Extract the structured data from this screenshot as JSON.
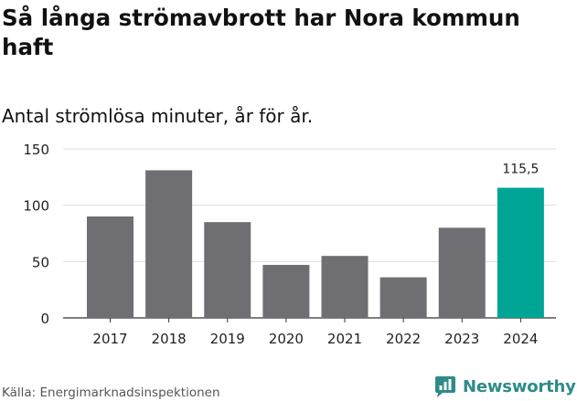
{
  "title": "Så långa strömavbrott har Nora kommun haft",
  "subtitle": "Antal strömlösa minuter, år för år.",
  "source": "Källa: Energimarknadsinspektionen",
  "brand": {
    "name": "Newsworthy",
    "icon": "newsworthy-logo-icon",
    "color": "#2e8b88"
  },
  "chart_data": {
    "type": "bar",
    "title": "Så långa strömavbrott har Nora kommun haft",
    "subtitle": "Antal strömlösa minuter, år för år.",
    "xlabel": "",
    "ylabel": "",
    "categories": [
      "2017",
      "2018",
      "2019",
      "2020",
      "2021",
      "2022",
      "2023",
      "2024"
    ],
    "values": [
      90,
      131,
      85,
      47,
      55,
      36,
      80,
      115.5
    ],
    "yticks": [
      0,
      50,
      100,
      150
    ],
    "ylim": [
      0,
      150
    ],
    "grid": true,
    "colors": {
      "default": "#6f6e73",
      "highlight": "#00a596"
    },
    "highlight_index": 7,
    "annotations": [
      {
        "category": "2024",
        "label": "115,5"
      }
    ]
  }
}
